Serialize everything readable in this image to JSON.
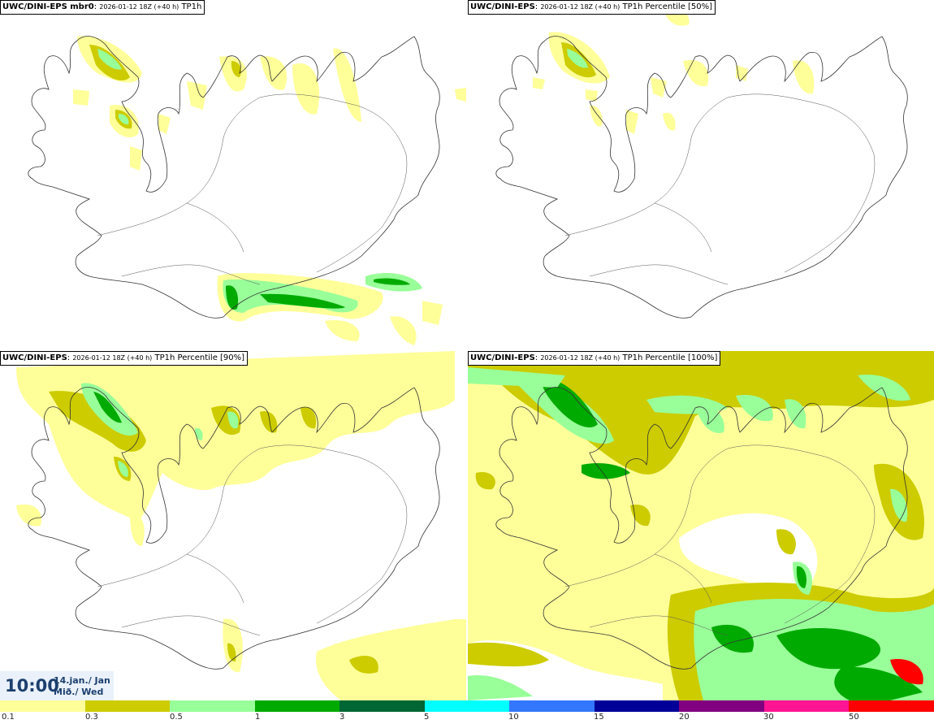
{
  "panels": [
    {
      "model": "UWC/DINI-EPS mbr0",
      "run": "2026-01-12 18Z (+40 h)",
      "field": "TP1h"
    },
    {
      "model": "UWC/DINI-EPS",
      "run": "2026-01-12 18Z (+40 h)",
      "field": "TP1h Percentile [50%]"
    },
    {
      "model": "UWC/DINI-EPS",
      "run": "2026-01-12 18Z (+40 h)",
      "field": "TP1h Percentile [90%]"
    },
    {
      "model": "UWC/DINI-EPS",
      "run": "2026-01-12 18Z (+40 h)",
      "field": "TP1h Percentile [100%]"
    }
  ],
  "valid_time": {
    "time": "10:00",
    "date": "14.jan./ Jan",
    "weekday": "Mið./ Wed"
  },
  "colorbar": {
    "colors": [
      "#ffff99",
      "#cccc00",
      "#99ff99",
      "#00aa00",
      "#006633",
      "#00ffff",
      "#3377ff",
      "#000099",
      "#800080",
      "#ff1493",
      "#ff0000"
    ],
    "labels": [
      "0.1",
      "0.3",
      "0.5",
      "1",
      "3",
      "5",
      "10",
      "15",
      "20",
      "30",
      "50"
    ]
  },
  "map_colors": {
    "land": "#ffffff",
    "coast": "#333333",
    "roads": "#555555"
  }
}
